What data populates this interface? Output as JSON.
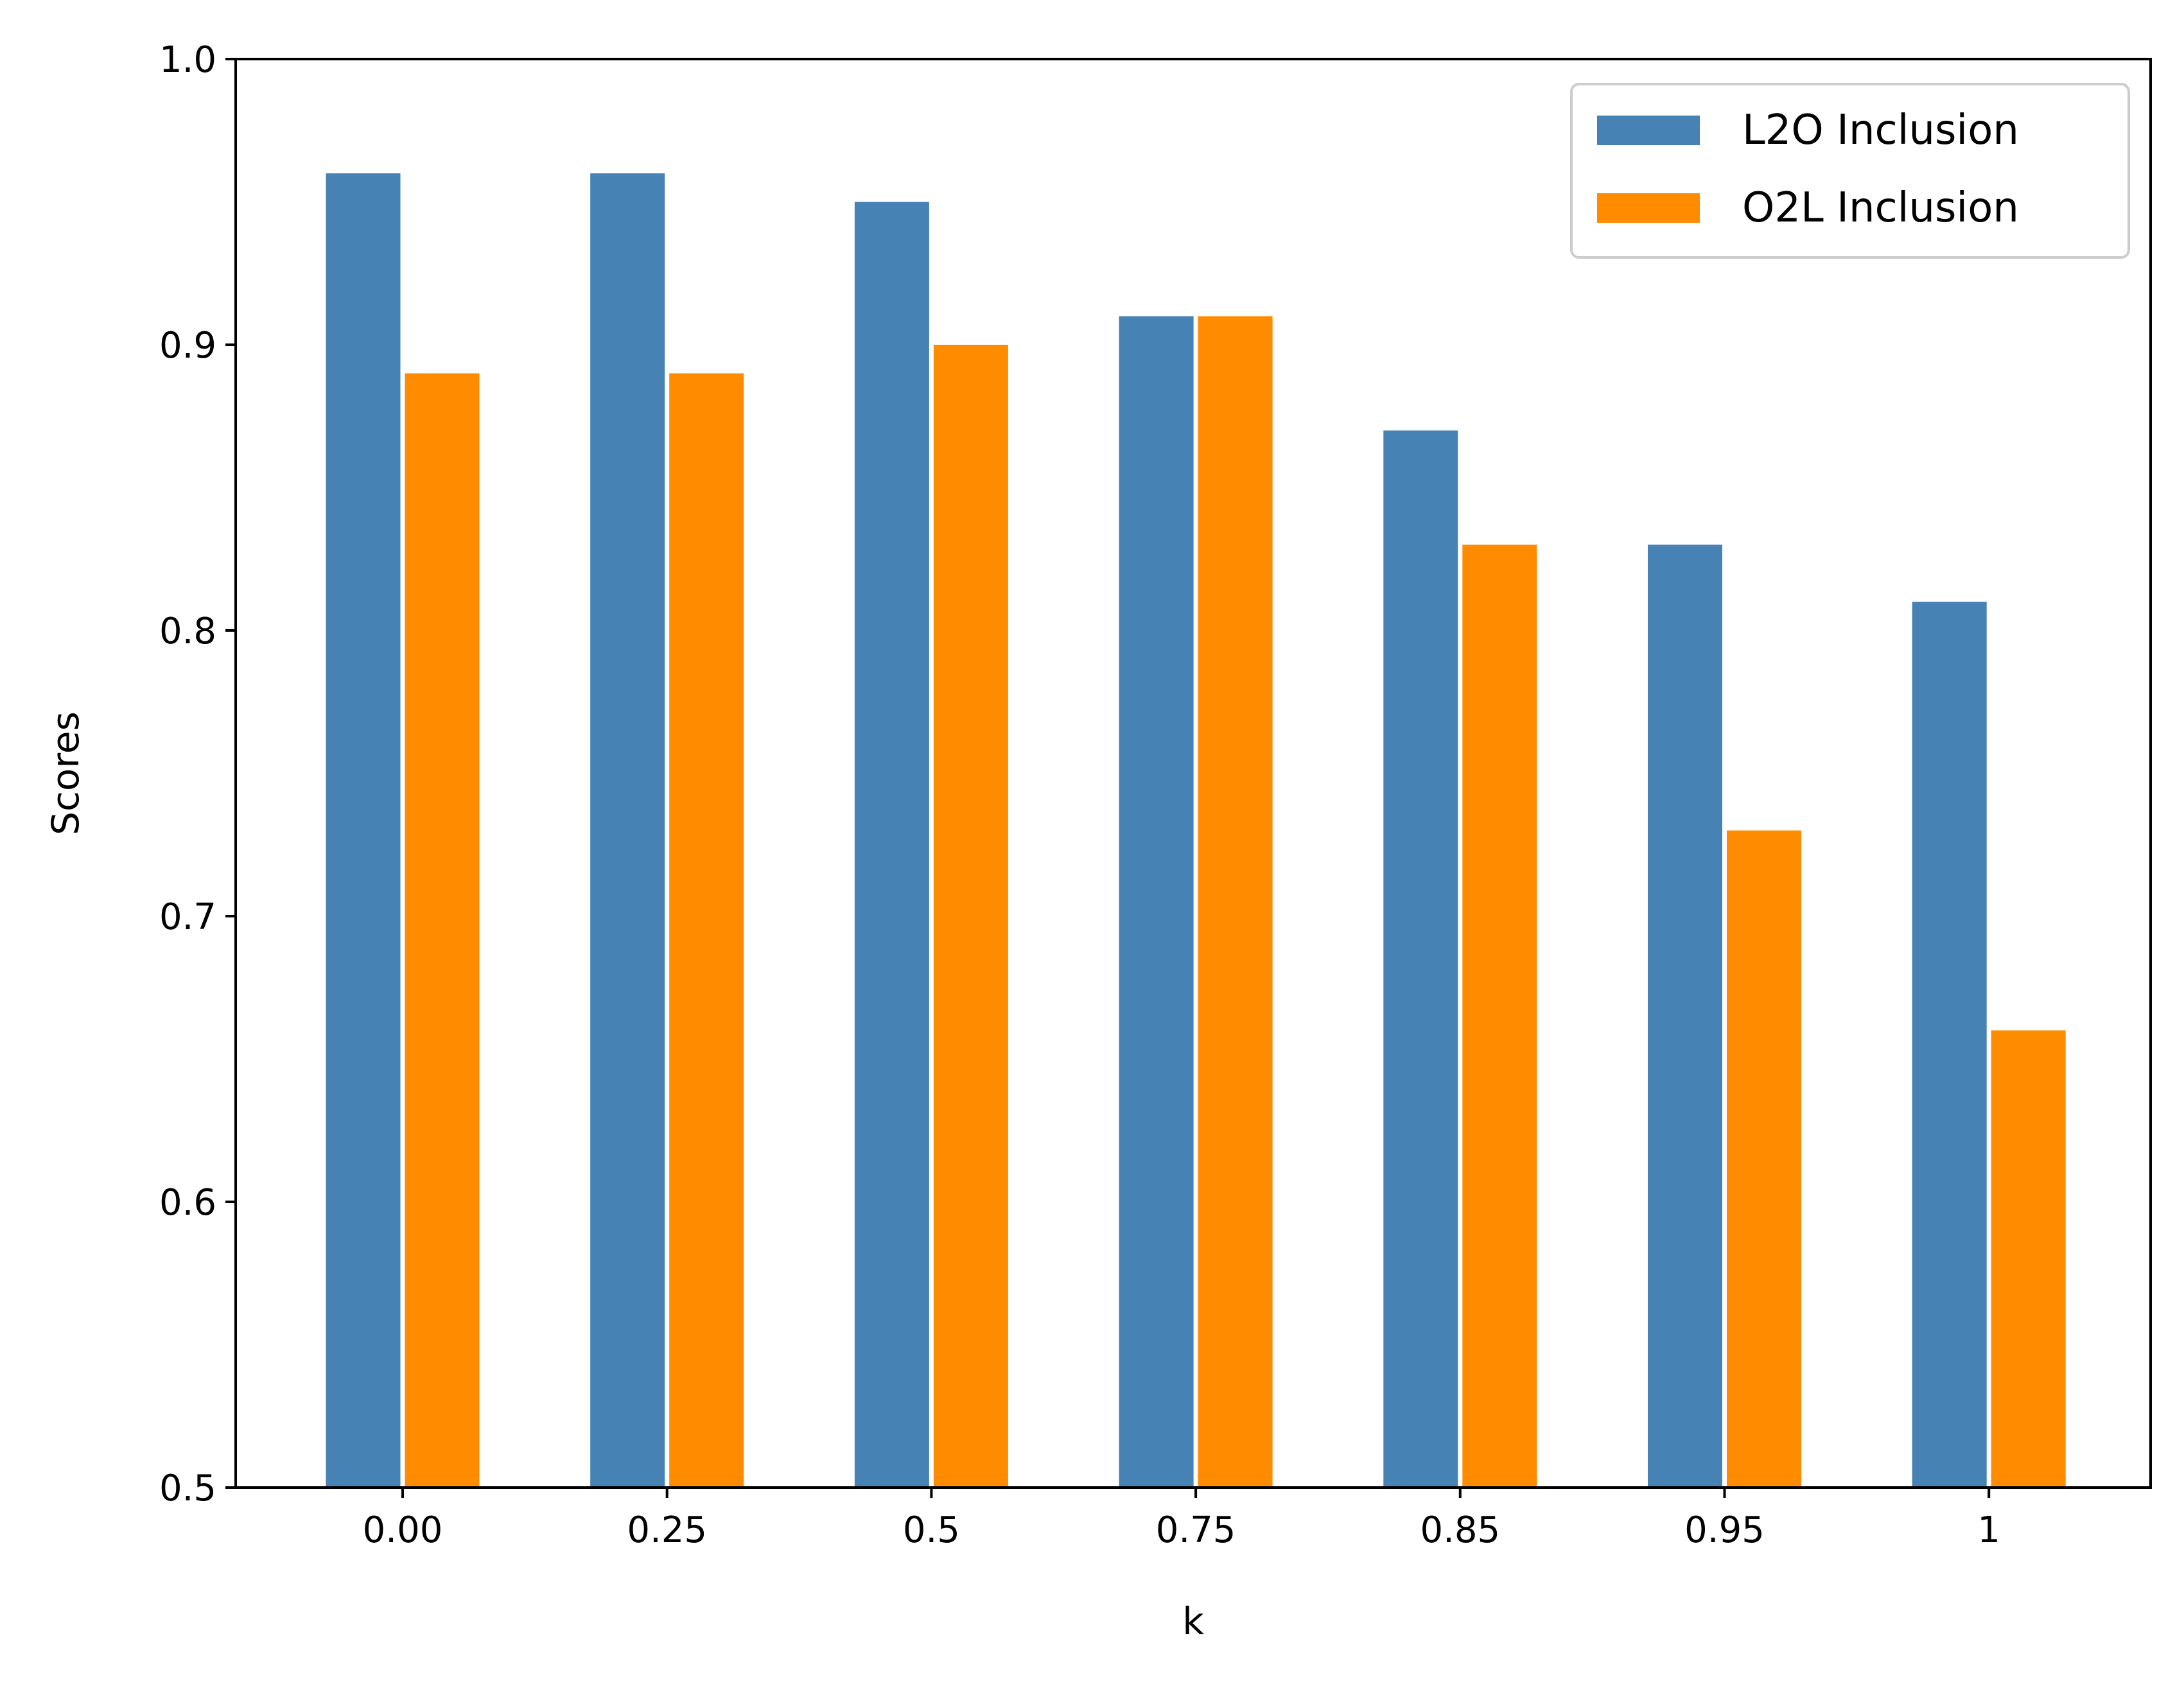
{
  "chart_data": {
    "type": "bar",
    "title": "",
    "xlabel": "k",
    "ylabel": "Scores",
    "ylim": [
      0.5,
      1.0
    ],
    "yticks": [
      "0.5",
      "0.6",
      "0.7",
      "0.8",
      "0.9",
      "1.0"
    ],
    "categories": [
      "0.00",
      "0.25",
      "0.5",
      "0.75",
      "0.85",
      "0.95",
      "1"
    ],
    "series": [
      {
        "name": "L2O Inclusion",
        "color": "#4682b4",
        "values": [
          0.96,
          0.96,
          0.95,
          0.91,
          0.87,
          0.83,
          0.81
        ]
      },
      {
        "name": "O2L Inclusion",
        "color": "#ff8c00",
        "values": [
          0.89,
          0.89,
          0.9,
          0.91,
          0.83,
          0.73,
          0.66
        ]
      }
    ],
    "grid": false,
    "legend": {
      "placement": "upper right"
    }
  }
}
